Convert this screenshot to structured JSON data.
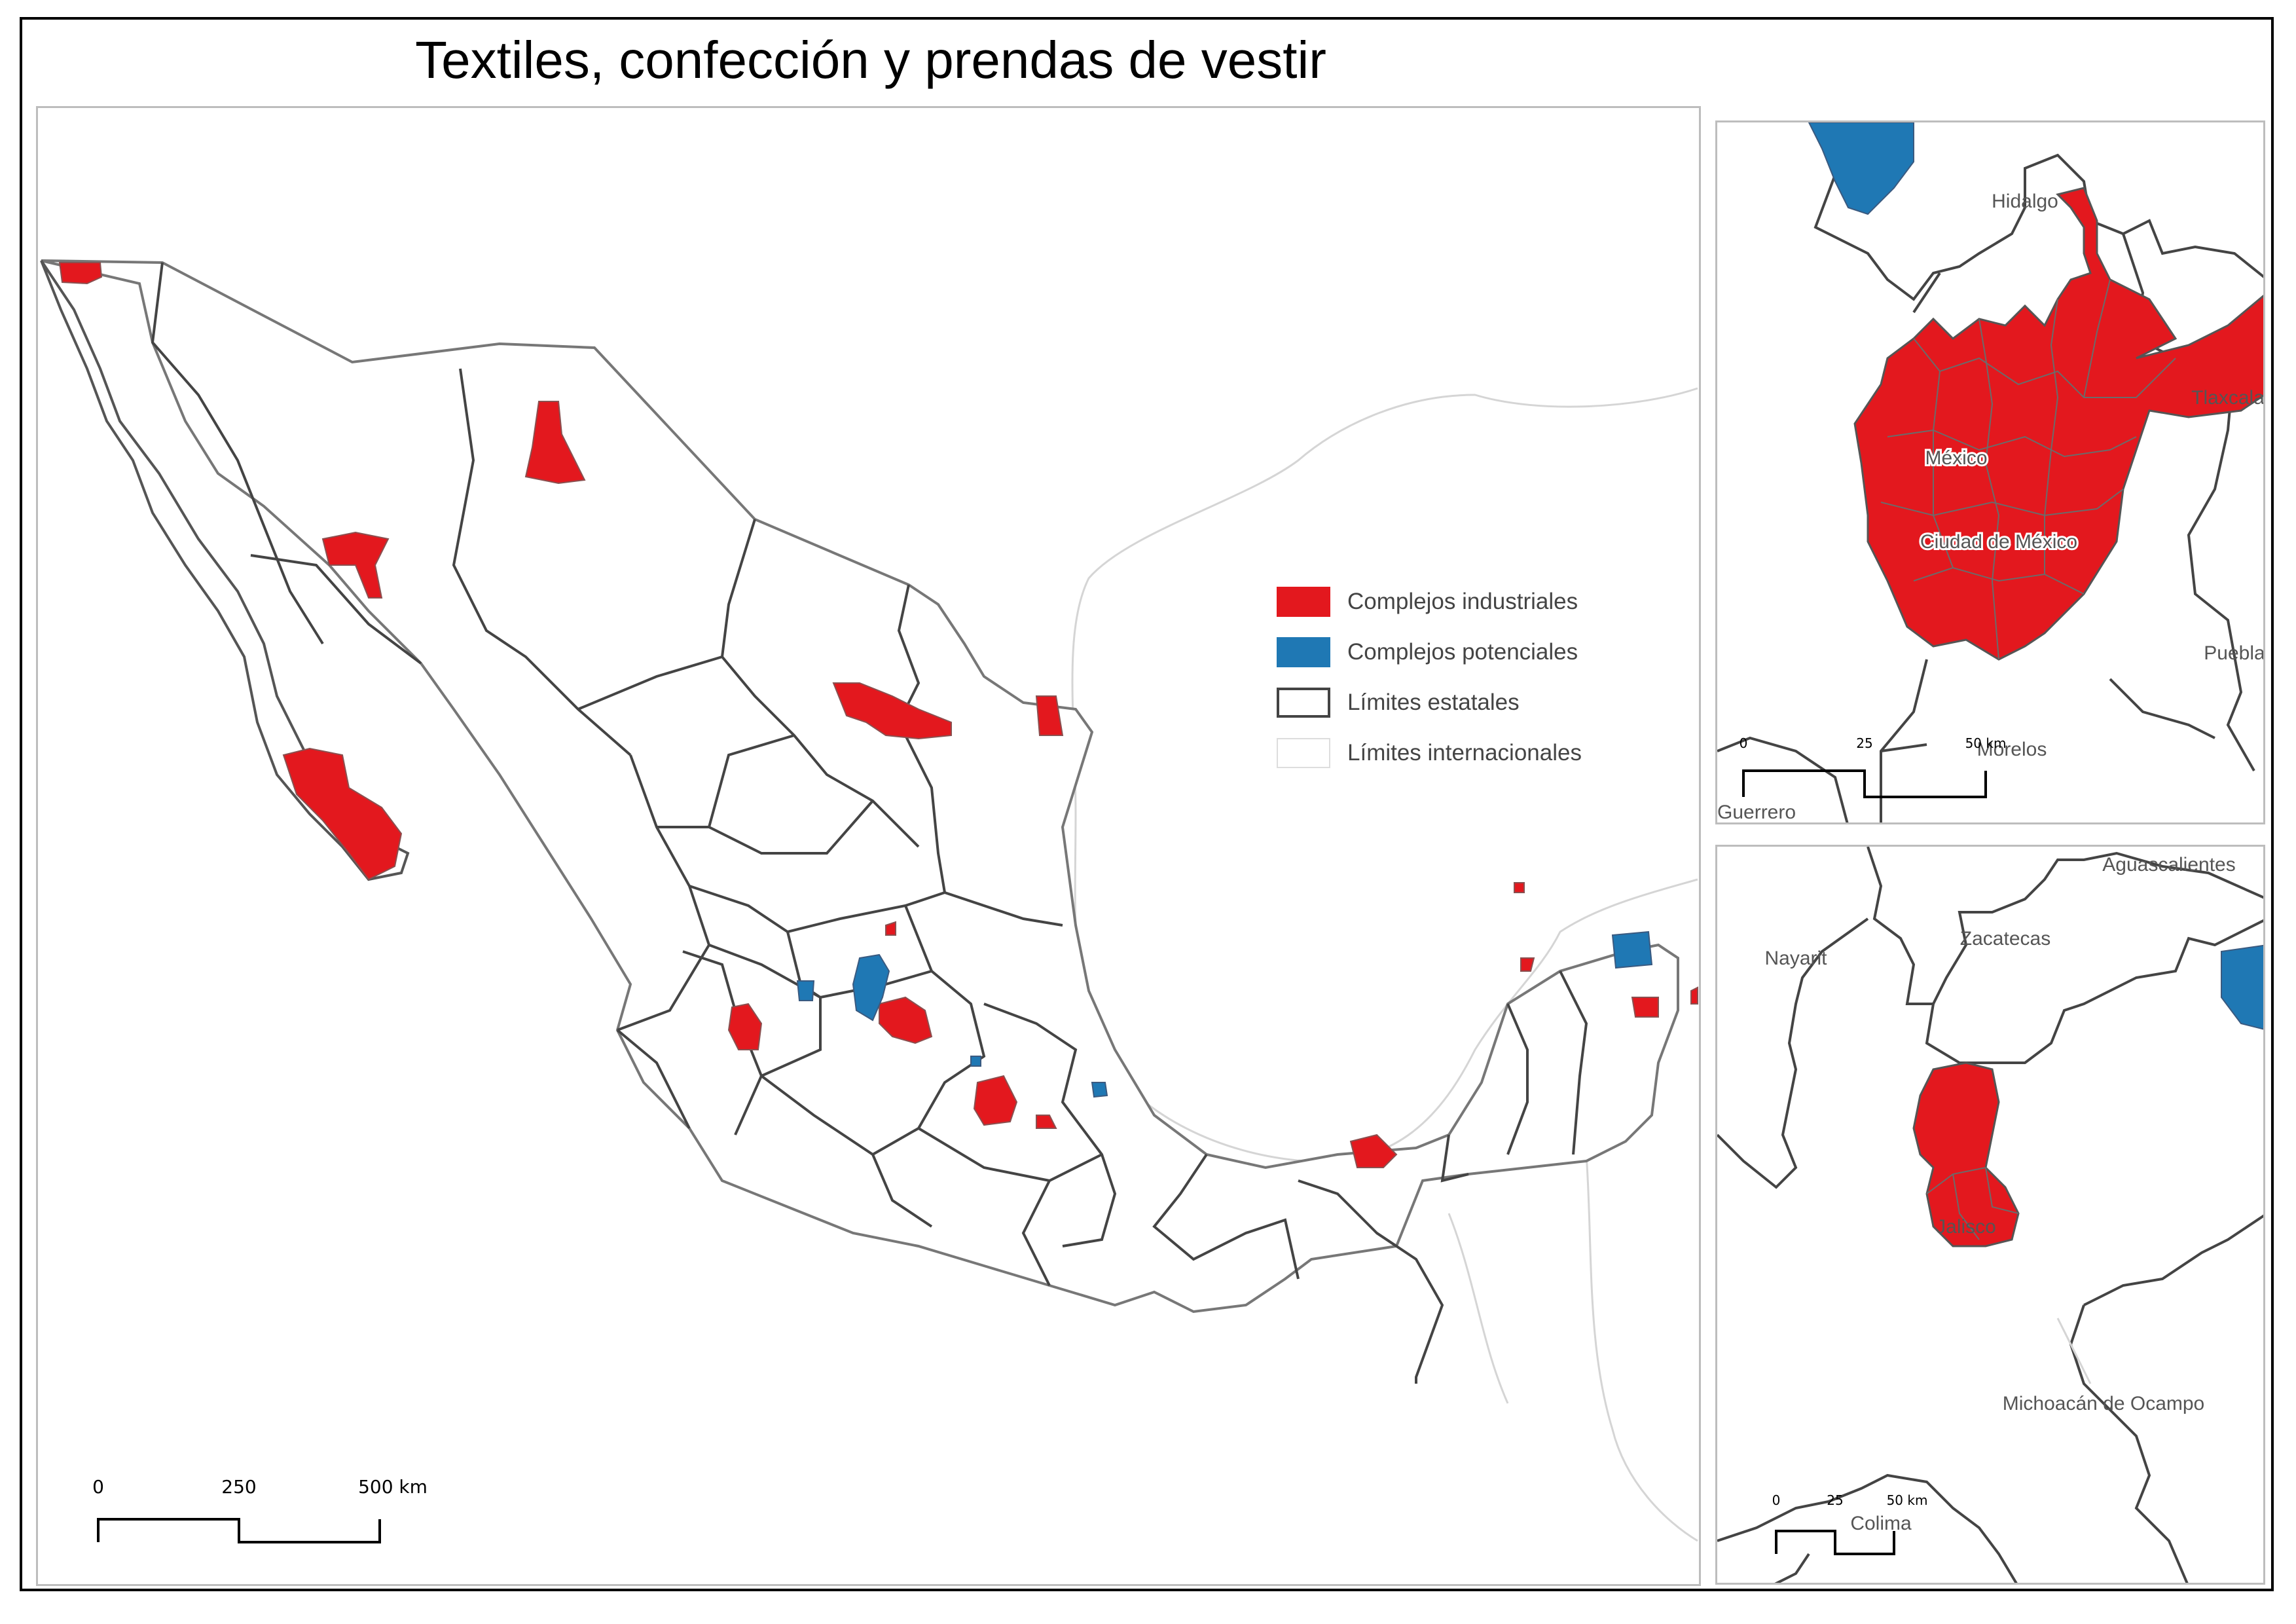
{
  "title": "Textiles, confección y prendas de vestir",
  "colors": {
    "industrial": "#e3181e",
    "potential": "#1f78b4",
    "state_border": "#444444",
    "intl_border": "#d5d5d5"
  },
  "legend": {
    "items": [
      {
        "label": "Complejos industriales",
        "kind": "industrial"
      },
      {
        "label": "Complejos potenciales",
        "kind": "potential"
      },
      {
        "label": "Límites estatales",
        "kind": "state"
      },
      {
        "label": "Límites internacionales",
        "kind": "intl"
      }
    ]
  },
  "main_map": {
    "scale": {
      "t0": "0",
      "t1": "250",
      "t2": "500 km"
    }
  },
  "inset_cdmx": {
    "labels": {
      "hidalgo": "Hidalgo",
      "tlaxcala": "Tlaxcala",
      "mexico": "México",
      "cdmx": "Ciudad de México",
      "puebla": "Puebla",
      "morelos": "Morelos",
      "guerrero": "Guerrero"
    },
    "scale": {
      "t0": "0",
      "t1": "25",
      "t2": "50 km"
    }
  },
  "inset_jalisco": {
    "labels": {
      "aguascalientes": "Aguascalientes",
      "zacatecas": "Zacatecas",
      "nayarit": "Nayarit",
      "jalisco": "Jalisco",
      "michoacan": "Michoacán de Ocampo",
      "colima": "Colima"
    },
    "scale": {
      "t0": "0",
      "t1": "25",
      "t2": "50 km"
    }
  }
}
